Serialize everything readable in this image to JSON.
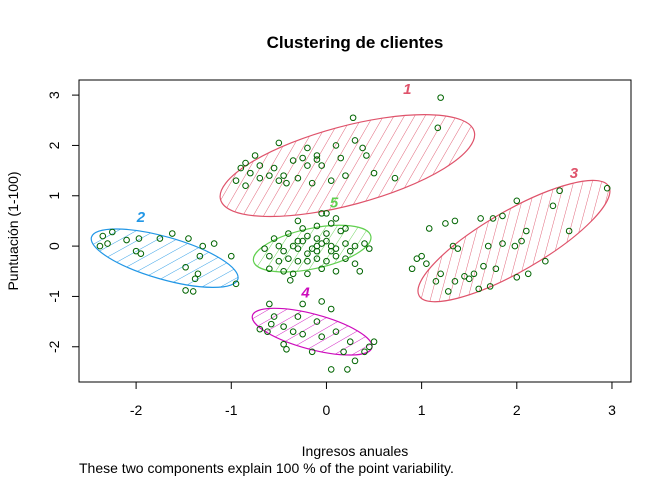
{
  "chart_data": {
    "type": "scatter",
    "title": "Clustering de clientes",
    "xlabel": "Ingresos anuales",
    "ylabel": "Puntuación (1-100)",
    "subtitle": "These two components explain 100 % of the point variability.",
    "xlim": [
      -2.6,
      3.2
    ],
    "ylim": [
      -2.7,
      3.3
    ],
    "xticks": [
      -2,
      -1,
      0,
      1,
      2,
      3
    ],
    "yticks": [
      -2,
      -1,
      0,
      1,
      2,
      3
    ],
    "grid": false,
    "point_color": "#006400",
    "clusters": [
      {
        "label": "1",
        "color": "#DF536B",
        "center": [
          0.22,
          1.6
        ],
        "radii": [
          1.38,
          0.78
        ],
        "angle": 15,
        "label_pos": [
          0.85,
          3.12
        ]
      },
      {
        "label": "2",
        "color": "#2297E6",
        "center": [
          -1.7,
          -0.24
        ],
        "radii": [
          0.8,
          0.42
        ],
        "angle": -16,
        "label_pos": [
          -1.95,
          0.58
        ]
      },
      {
        "label": "3",
        "color": "#DF536B",
        "center": [
          1.97,
          0.1
        ],
        "radii": [
          1.15,
          0.6
        ],
        "angle": 30,
        "label_pos": [
          2.6,
          1.45
        ]
      },
      {
        "label": "4",
        "color": "#CD0BBC",
        "center": [
          -0.15,
          -1.7
        ],
        "radii": [
          0.65,
          0.35
        ],
        "angle": -15,
        "label_pos": [
          -0.22,
          -0.92
        ]
      },
      {
        "label": "5",
        "color": "#61D04F",
        "center": [
          -0.15,
          -0.05
        ],
        "radii": [
          0.63,
          0.4
        ],
        "angle": 12,
        "label_pos": [
          0.08,
          0.87
        ]
      }
    ],
    "points": [
      [
        1.2,
        2.95
      ],
      [
        1.17,
        2.35
      ],
      [
        0.28,
        2.55
      ],
      [
        0.3,
        2.1
      ],
      [
        0.38,
        1.95
      ],
      [
        0.1,
        2.0
      ],
      [
        -0.2,
        1.95
      ],
      [
        -0.5,
        2.05
      ],
      [
        -0.35,
        1.7
      ],
      [
        -0.25,
        1.75
      ],
      [
        -0.1,
        1.8
      ],
      [
        -0.75,
        1.8
      ],
      [
        -0.85,
        1.65
      ],
      [
        -0.9,
        1.55
      ],
      [
        -0.7,
        1.6
      ],
      [
        -0.6,
        1.4
      ],
      [
        -0.55,
        1.55
      ],
      [
        -0.45,
        1.4
      ],
      [
        -0.3,
        1.35
      ],
      [
        -0.42,
        1.25
      ],
      [
        -0.5,
        1.3
      ],
      [
        -0.15,
        1.25
      ],
      [
        0.05,
        1.3
      ],
      [
        0.2,
        1.4
      ],
      [
        0.5,
        1.45
      ],
      [
        0.72,
        1.35
      ],
      [
        0.42,
        1.8
      ],
      [
        -0.8,
        1.45
      ],
      [
        -0.95,
        1.3
      ],
      [
        -0.85,
        1.2
      ],
      [
        -0.7,
        1.35
      ],
      [
        -0.2,
        1.6
      ],
      [
        -0.05,
        1.6
      ],
      [
        0.15,
        1.75
      ],
      [
        -0.1,
        1.72
      ],
      [
        0.0,
        0.65
      ],
      [
        -2.35,
        0.2
      ],
      [
        -2.3,
        0.05
      ],
      [
        -2.38,
        0.0
      ],
      [
        -2.25,
        0.28
      ],
      [
        -2.1,
        0.12
      ],
      [
        -1.97,
        0.15
      ],
      [
        -2.0,
        -0.1
      ],
      [
        -1.95,
        -0.15
      ],
      [
        -1.75,
        0.15
      ],
      [
        -1.62,
        0.25
      ],
      [
        -1.45,
        0.15
      ],
      [
        -1.3,
        0.0
      ],
      [
        -1.18,
        0.05
      ],
      [
        -1.33,
        -0.2
      ],
      [
        -1.48,
        -0.42
      ],
      [
        -1.38,
        -0.65
      ],
      [
        -1.48,
        -0.88
      ],
      [
        -1.4,
        -0.9
      ],
      [
        -1.35,
        -0.55
      ],
      [
        -1.0,
        -0.2
      ],
      [
        -0.95,
        -0.75
      ],
      [
        2.95,
        1.15
      ],
      [
        2.45,
        1.1
      ],
      [
        2.38,
        0.8
      ],
      [
        2.0,
        0.9
      ],
      [
        1.85,
        0.6
      ],
      [
        1.75,
        0.55
      ],
      [
        1.62,
        0.55
      ],
      [
        1.08,
        0.35
      ],
      [
        1.25,
        0.45
      ],
      [
        1.38,
        -0.05
      ],
      [
        1.33,
        0.0
      ],
      [
        1.35,
        0.5
      ],
      [
        2.55,
        0.3
      ],
      [
        2.1,
        0.3
      ],
      [
        2.05,
        0.1
      ],
      [
        1.98,
        0.0
      ],
      [
        1.85,
        0.05
      ],
      [
        1.7,
        0.0
      ],
      [
        2.3,
        -0.3
      ],
      [
        1.65,
        -0.4
      ],
      [
        1.55,
        -0.55
      ],
      [
        1.5,
        -0.65
      ],
      [
        1.45,
        -0.6
      ],
      [
        1.35,
        -0.7
      ],
      [
        1.28,
        -0.9
      ],
      [
        1.15,
        -0.7
      ],
      [
        1.05,
        -0.35
      ],
      [
        0.95,
        -0.25
      ],
      [
        0.9,
        -0.45
      ],
      [
        1.6,
        -0.85
      ],
      [
        1.72,
        -0.8
      ],
      [
        2.0,
        -0.62
      ],
      [
        2.12,
        -0.55
      ],
      [
        1.78,
        -0.45
      ],
      [
        1.2,
        -0.55
      ],
      [
        1.0,
        -0.2
      ],
      [
        -0.6,
        -1.15
      ],
      [
        -0.25,
        -1.15
      ],
      [
        -0.05,
        -1.1
      ],
      [
        0.05,
        -1.25
      ],
      [
        -0.3,
        -1.4
      ],
      [
        -0.1,
        -1.5
      ],
      [
        -0.55,
        -1.4
      ],
      [
        -0.45,
        -1.6
      ],
      [
        -0.62,
        -1.7
      ],
      [
        -0.7,
        -1.65
      ],
      [
        -0.35,
        -1.7
      ],
      [
        -0.25,
        -1.75
      ],
      [
        -0.05,
        -1.8
      ],
      [
        0.1,
        -1.7
      ],
      [
        0.25,
        -1.9
      ],
      [
        -0.45,
        -1.95
      ],
      [
        -0.42,
        -2.05
      ],
      [
        -0.15,
        -2.1
      ],
      [
        0.18,
        -2.1
      ],
      [
        0.05,
        -2.45
      ],
      [
        0.22,
        -2.45
      ],
      [
        0.4,
        -2.1
      ],
      [
        0.45,
        -2.0
      ],
      [
        0.3,
        -2.28
      ],
      [
        -0.58,
        -1.55
      ],
      [
        0.5,
        -1.9
      ],
      [
        -0.2,
        0.2
      ],
      [
        -0.1,
        0.15
      ],
      [
        0.0,
        0.25
      ],
      [
        0.15,
        0.3
      ],
      [
        -0.3,
        0.1
      ],
      [
        -0.35,
        0.0
      ],
      [
        -0.5,
        0.0
      ],
      [
        -0.45,
        -0.1
      ],
      [
        -0.3,
        -0.05
      ],
      [
        -0.2,
        -0.15
      ],
      [
        -0.15,
        -0.05
      ],
      [
        -0.05,
        0.05
      ],
      [
        0.05,
        0.0
      ],
      [
        0.1,
        -0.05
      ],
      [
        0.2,
        0.05
      ],
      [
        0.3,
        0.0
      ],
      [
        0.4,
        0.05
      ],
      [
        0.45,
        -0.05
      ],
      [
        -0.6,
        -0.2
      ],
      [
        -0.5,
        -0.3
      ],
      [
        -0.4,
        -0.25
      ],
      [
        -0.3,
        -0.3
      ],
      [
        -0.2,
        -0.3
      ],
      [
        -0.1,
        -0.25
      ],
      [
        0.0,
        -0.3
      ],
      [
        0.1,
        -0.2
      ],
      [
        0.2,
        -0.25
      ],
      [
        0.3,
        -0.35
      ],
      [
        -0.45,
        -0.5
      ],
      [
        -0.35,
        -0.55
      ],
      [
        -0.2,
        -0.55
      ],
      [
        -0.05,
        -0.45
      ],
      [
        0.1,
        -0.5
      ],
      [
        -0.6,
        -0.45
      ],
      [
        -0.55,
        0.15
      ],
      [
        -0.4,
        0.25
      ],
      [
        -0.25,
        0.35
      ],
      [
        -0.1,
        0.4
      ],
      [
        0.05,
        0.45
      ],
      [
        0.2,
        0.35
      ],
      [
        -0.05,
        0.65
      ],
      [
        0.1,
        0.55
      ],
      [
        -0.3,
        0.5
      ],
      [
        -0.65,
        -0.05
      ],
      [
        -0.25,
        0.1
      ],
      [
        0.05,
        -0.1
      ],
      [
        0.25,
        -0.1
      ],
      [
        -0.1,
        -0.1
      ],
      [
        -0.1,
        0.0
      ],
      [
        0.0,
        0.1
      ],
      [
        -0.38,
        -0.68
      ],
      [
        0.35,
        -0.5
      ]
    ]
  }
}
